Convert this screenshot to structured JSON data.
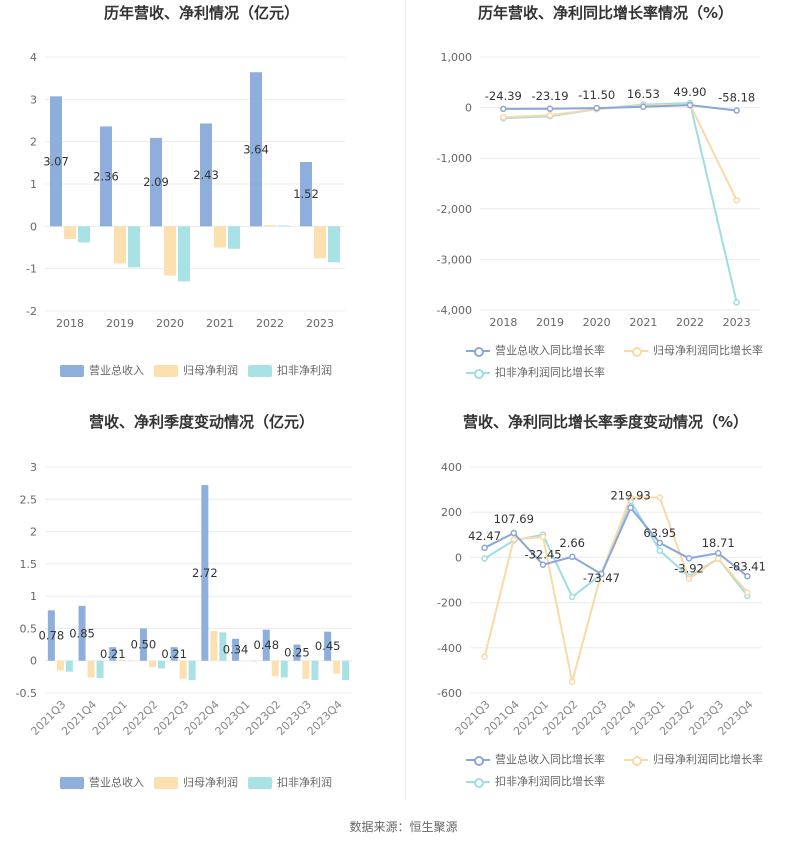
{
  "source_text": "数据来源：恒生聚源",
  "colors": {
    "revenue": "#8eaedc",
    "net": "#fde0b0",
    "deduct": "#a8e2e4",
    "rev_line": "#8ba7d9",
    "net_line": "#fbd9a6",
    "deduct_line": "#9fdde0"
  },
  "chart_data": [
    {
      "type": "bar",
      "title": "历年营收、净利情况（亿元）",
      "categories": [
        "2018",
        "2019",
        "2020",
        "2021",
        "2022",
        "2023"
      ],
      "ylim": [
        -2,
        4
      ],
      "yticks": [
        "-2",
        "-1",
        "0",
        "1",
        "2",
        "3",
        "4"
      ],
      "series": [
        {
          "name": "营业总收入",
          "values": [
            3.07,
            2.36,
            2.09,
            2.43,
            3.64,
            1.52
          ],
          "labels": [
            "3.07",
            "2.36",
            "2.09",
            "2.43",
            "3.64",
            "1.52"
          ]
        },
        {
          "name": "归母净利润",
          "values": [
            -0.3,
            -0.88,
            -1.16,
            -0.5,
            0.03,
            -0.76
          ]
        },
        {
          "name": "扣非净利润",
          "values": [
            -0.38,
            -0.97,
            -1.3,
            -0.53,
            0.02,
            -0.85
          ]
        }
      ]
    },
    {
      "type": "line",
      "title": "历年营收、净利同比增长率情况（%）",
      "categories": [
        "2018",
        "2019",
        "2020",
        "2021",
        "2022",
        "2023"
      ],
      "ylim": [
        -4000,
        1000
      ],
      "yticks": [
        "-4,000",
        "-3,000",
        "-2,000",
        "-1,000",
        "0",
        "1,000"
      ],
      "series": [
        {
          "name": "营业总收入同比增长率",
          "values": [
            -24.39,
            -23.19,
            -11.5,
            16.53,
            49.9,
            -58.18
          ],
          "labels": [
            "-24.39",
            "-23.19",
            "-11.50",
            "16.53",
            "49.90",
            "-58.18"
          ]
        },
        {
          "name": "归母净利润同比增长率",
          "values": [
            -190,
            -150,
            -30,
            40,
            60,
            -1830
          ]
        },
        {
          "name": "扣非净利润同比增长率",
          "values": [
            -210,
            -170,
            -30,
            60,
            90,
            -3850
          ]
        }
      ]
    },
    {
      "type": "bar",
      "title": "营收、净利季度变动情况（亿元）",
      "categories": [
        "2021Q3",
        "2021Q4",
        "2022Q1",
        "2022Q2",
        "2022Q3",
        "2022Q4",
        "2023Q1",
        "2023Q2",
        "2023Q3",
        "2023Q4"
      ],
      "ylim": [
        -0.5,
        3
      ],
      "yticks": [
        "-0.5",
        "0",
        "0.5",
        "1",
        "1.5",
        "2",
        "2.5",
        "3"
      ],
      "series": [
        {
          "name": "营业总收入",
          "values": [
            0.78,
            0.85,
            0.21,
            0.5,
            0.21,
            2.72,
            0.34,
            0.48,
            0.25,
            0.45
          ],
          "labels": [
            "0.78",
            "0.85",
            "0.21",
            "0.50",
            "0.21",
            "2.72",
            "0.34",
            "0.48",
            "0.25",
            "0.45"
          ]
        },
        {
          "name": "归母净利润",
          "values": [
            -0.15,
            -0.26,
            0.02,
            -0.1,
            -0.28,
            0.46,
            0.0,
            -0.24,
            -0.28,
            -0.2
          ]
        },
        {
          "name": "扣非净利润",
          "values": [
            -0.17,
            -0.27,
            0.0,
            -0.12,
            -0.3,
            0.44,
            0.0,
            -0.26,
            -0.3,
            -0.3
          ]
        }
      ]
    },
    {
      "type": "line",
      "title": "营收、净利同比增长率季度变动情况（%）",
      "categories": [
        "2021Q3",
        "2021Q4",
        "2022Q1",
        "2022Q2",
        "2022Q3",
        "2022Q4",
        "2023Q1",
        "2023Q2",
        "2023Q3",
        "2023Q4"
      ],
      "ylim": [
        -600,
        400
      ],
      "yticks": [
        "-600",
        "-400",
        "-200",
        "0",
        "200",
        "400"
      ],
      "series": [
        {
          "name": "营业总收入同比增长率",
          "values": [
            42.47,
            107.69,
            -32.45,
            2.66,
            -73.47,
            219.93,
            63.95,
            -3.92,
            18.71,
            -83.41
          ],
          "labels": [
            "42.47",
            "107.69",
            "-32.45",
            "2.66",
            "-73.47",
            "219.93",
            "63.95",
            "-3.92",
            "18.71",
            "-83.41"
          ]
        },
        {
          "name": "归母净利润同比增长率",
          "values": [
            -440,
            80,
            90,
            -550,
            -70,
            265,
            265,
            -95,
            -5,
            -155
          ]
        },
        {
          "name": "扣非净利润同比增长率",
          "values": [
            -5,
            75,
            100,
            -175,
            -75,
            250,
            30,
            -85,
            -5,
            -170
          ]
        }
      ]
    }
  ]
}
